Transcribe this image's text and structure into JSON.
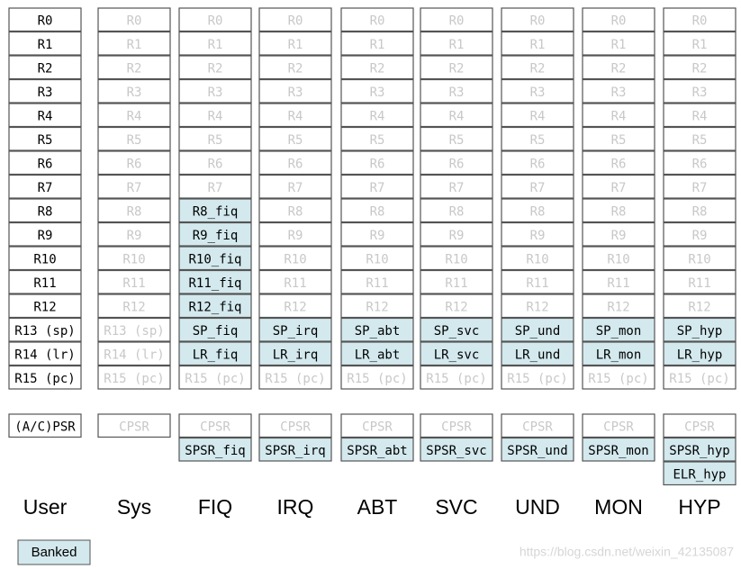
{
  "columns": [
    {
      "mode": "User",
      "faded": false,
      "registers": [
        {
          "t": "R0"
        },
        {
          "t": "R1"
        },
        {
          "t": "R2"
        },
        {
          "t": "R3"
        },
        {
          "t": "R4"
        },
        {
          "t": "R5"
        },
        {
          "t": "R6"
        },
        {
          "t": "R7"
        },
        {
          "t": "R8"
        },
        {
          "t": "R9"
        },
        {
          "t": "R10"
        },
        {
          "t": "R11"
        },
        {
          "t": "R12"
        },
        {
          "t": "R13 (sp)"
        },
        {
          "t": "R14 (lr)"
        },
        {
          "t": "R15 (pc)"
        }
      ],
      "psr": [
        {
          "t": "(A/C)PSR"
        }
      ]
    },
    {
      "mode": "Sys",
      "faded": true,
      "registers": [
        {
          "t": "R0"
        },
        {
          "t": "R1"
        },
        {
          "t": "R2"
        },
        {
          "t": "R3"
        },
        {
          "t": "R4"
        },
        {
          "t": "R5"
        },
        {
          "t": "R6"
        },
        {
          "t": "R7"
        },
        {
          "t": "R8"
        },
        {
          "t": "R9"
        },
        {
          "t": "R10"
        },
        {
          "t": "R11"
        },
        {
          "t": "R12"
        },
        {
          "t": "R13 (sp)"
        },
        {
          "t": "R14 (lr)"
        },
        {
          "t": "R15 (pc)"
        }
      ],
      "psr": [
        {
          "t": "CPSR"
        }
      ]
    },
    {
      "mode": "FIQ",
      "faded": true,
      "registers": [
        {
          "t": "R0"
        },
        {
          "t": "R1"
        },
        {
          "t": "R2"
        },
        {
          "t": "R3"
        },
        {
          "t": "R4"
        },
        {
          "t": "R5"
        },
        {
          "t": "R6"
        },
        {
          "t": "R7"
        },
        {
          "t": "R8_fiq",
          "b": true
        },
        {
          "t": "R9_fiq",
          "b": true
        },
        {
          "t": "R10_fiq",
          "b": true
        },
        {
          "t": "R11_fiq",
          "b": true
        },
        {
          "t": "R12_fiq",
          "b": true
        },
        {
          "t": "SP_fiq",
          "b": true
        },
        {
          "t": "LR_fiq",
          "b": true
        },
        {
          "t": "R15 (pc)"
        }
      ],
      "psr": [
        {
          "t": "CPSR"
        },
        {
          "t": "SPSR_fiq",
          "b": true
        }
      ]
    },
    {
      "mode": "IRQ",
      "faded": true,
      "registers": [
        {
          "t": "R0"
        },
        {
          "t": "R1"
        },
        {
          "t": "R2"
        },
        {
          "t": "R3"
        },
        {
          "t": "R4"
        },
        {
          "t": "R5"
        },
        {
          "t": "R6"
        },
        {
          "t": "R7"
        },
        {
          "t": "R8"
        },
        {
          "t": "R9"
        },
        {
          "t": "R10"
        },
        {
          "t": "R11"
        },
        {
          "t": "R12"
        },
        {
          "t": "SP_irq",
          "b": true
        },
        {
          "t": "LR_irq",
          "b": true
        },
        {
          "t": "R15 (pc)"
        }
      ],
      "psr": [
        {
          "t": "CPSR"
        },
        {
          "t": "SPSR_irq",
          "b": true
        }
      ]
    },
    {
      "mode": "ABT",
      "faded": true,
      "registers": [
        {
          "t": "R0"
        },
        {
          "t": "R1"
        },
        {
          "t": "R2"
        },
        {
          "t": "R3"
        },
        {
          "t": "R4"
        },
        {
          "t": "R5"
        },
        {
          "t": "R6"
        },
        {
          "t": "R7"
        },
        {
          "t": "R8"
        },
        {
          "t": "R9"
        },
        {
          "t": "R10"
        },
        {
          "t": "R11"
        },
        {
          "t": "R12"
        },
        {
          "t": "SP_abt",
          "b": true
        },
        {
          "t": "LR_abt",
          "b": true
        },
        {
          "t": "R15 (pc)"
        }
      ],
      "psr": [
        {
          "t": "CPSR"
        },
        {
          "t": "SPSR_abt",
          "b": true
        }
      ]
    },
    {
      "mode": "SVC",
      "faded": true,
      "registers": [
        {
          "t": "R0"
        },
        {
          "t": "R1"
        },
        {
          "t": "R2"
        },
        {
          "t": "R3"
        },
        {
          "t": "R4"
        },
        {
          "t": "R5"
        },
        {
          "t": "R6"
        },
        {
          "t": "R7"
        },
        {
          "t": "R8"
        },
        {
          "t": "R9"
        },
        {
          "t": "R10"
        },
        {
          "t": "R11"
        },
        {
          "t": "R12"
        },
        {
          "t": "SP_svc",
          "b": true
        },
        {
          "t": "LR_svc",
          "b": true
        },
        {
          "t": "R15 (pc)"
        }
      ],
      "psr": [
        {
          "t": "CPSR"
        },
        {
          "t": "SPSR_svc",
          "b": true
        }
      ]
    },
    {
      "mode": "UND",
      "faded": true,
      "registers": [
        {
          "t": "R0"
        },
        {
          "t": "R1"
        },
        {
          "t": "R2"
        },
        {
          "t": "R3"
        },
        {
          "t": "R4"
        },
        {
          "t": "R5"
        },
        {
          "t": "R6"
        },
        {
          "t": "R7"
        },
        {
          "t": "R8"
        },
        {
          "t": "R9"
        },
        {
          "t": "R10"
        },
        {
          "t": "R11"
        },
        {
          "t": "R12"
        },
        {
          "t": "SP_und",
          "b": true
        },
        {
          "t": "LR_und",
          "b": true
        },
        {
          "t": "R15 (pc)"
        }
      ],
      "psr": [
        {
          "t": "CPSR"
        },
        {
          "t": "SPSR_und",
          "b": true
        }
      ]
    },
    {
      "mode": "MON",
      "faded": true,
      "registers": [
        {
          "t": "R0"
        },
        {
          "t": "R1"
        },
        {
          "t": "R2"
        },
        {
          "t": "R3"
        },
        {
          "t": "R4"
        },
        {
          "t": "R5"
        },
        {
          "t": "R6"
        },
        {
          "t": "R7"
        },
        {
          "t": "R8"
        },
        {
          "t": "R9"
        },
        {
          "t": "R10"
        },
        {
          "t": "R11"
        },
        {
          "t": "R12"
        },
        {
          "t": "SP_mon",
          "b": true
        },
        {
          "t": "LR_mon",
          "b": true
        },
        {
          "t": "R15 (pc)"
        }
      ],
      "psr": [
        {
          "t": "CPSR"
        },
        {
          "t": "SPSR_mon",
          "b": true
        }
      ]
    },
    {
      "mode": "HYP",
      "faded": true,
      "registers": [
        {
          "t": "R0"
        },
        {
          "t": "R1"
        },
        {
          "t": "R2"
        },
        {
          "t": "R3"
        },
        {
          "t": "R4"
        },
        {
          "t": "R5"
        },
        {
          "t": "R6"
        },
        {
          "t": "R7"
        },
        {
          "t": "R8"
        },
        {
          "t": "R9"
        },
        {
          "t": "R10"
        },
        {
          "t": "R11"
        },
        {
          "t": "R12"
        },
        {
          "t": "SP_hyp",
          "b": true
        },
        {
          "t": "LR_hyp",
          "b": true
        },
        {
          "t": "R15 (pc)"
        }
      ],
      "psr": [
        {
          "t": "CPSR"
        },
        {
          "t": "SPSR_hyp",
          "b": true
        },
        {
          "t": "ELR_hyp",
          "b": true
        }
      ]
    }
  ],
  "legend": {
    "label": "Banked"
  },
  "watermark": "https://blog.csdn.net/weixin_42135087"
}
